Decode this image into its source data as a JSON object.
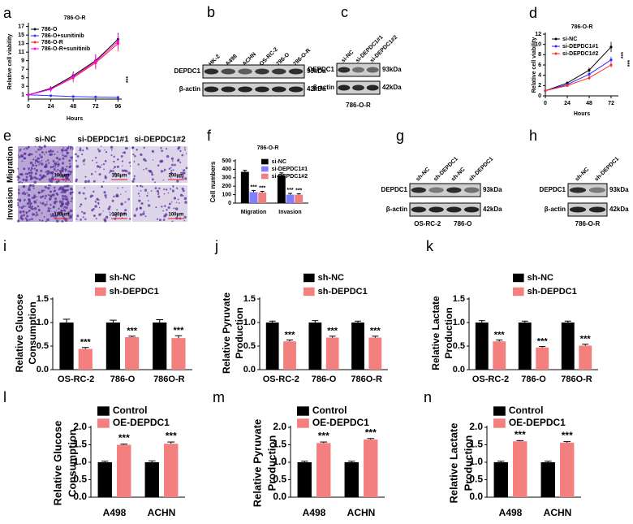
{
  "chart_data": [
    {
      "panel": "a",
      "type": "line",
      "title": "786-O-R",
      "xlabel": "Hours",
      "ylabel": "Relative cell viability",
      "x": [
        0,
        24,
        48,
        72,
        96
      ],
      "xlim": [
        0,
        100
      ],
      "xticks": [
        0,
        24,
        48,
        72,
        96
      ],
      "ylim": [
        0,
        17.5
      ],
      "yticks": [
        1,
        3,
        5,
        7,
        9,
        11,
        13,
        15,
        17
      ],
      "series": [
        {
          "name": "786-O",
          "color": "#000000",
          "values": [
            1,
            2.5,
            5.5,
            9,
            14
          ],
          "errors": [
            0,
            0.5,
            1,
            1.5,
            1.5
          ]
        },
        {
          "name": "786-O+sunitinib",
          "color": "#3333ff",
          "values": [
            1,
            0.8,
            0.6,
            0.5,
            0.4
          ],
          "errors": [
            0,
            0.1,
            0.1,
            0.1,
            0.1
          ]
        },
        {
          "name": "786-O-R",
          "color": "#ff2020",
          "values": [
            1,
            2.3,
            5,
            8.5,
            13
          ],
          "errors": [
            0,
            0.6,
            1.1,
            1.5,
            1.8
          ]
        },
        {
          "name": "786-O-R+sunitinib",
          "color": "#ff00ff",
          "values": [
            1,
            2.3,
            5.2,
            8.8,
            13.5
          ],
          "errors": [
            0,
            0.5,
            1,
            1.6,
            1.7
          ]
        }
      ],
      "annotations": [
        "***"
      ]
    },
    {
      "panel": "d",
      "type": "line",
      "title": "786-O-R",
      "xlabel": "Hours",
      "ylabel": "Relative cell viability",
      "x": [
        0,
        24,
        48,
        72
      ],
      "xlim": [
        0,
        80
      ],
      "xticks": [
        0,
        24,
        48,
        72
      ],
      "ylim": [
        0,
        12
      ],
      "yticks": [
        0,
        2,
        4,
        6,
        8,
        10,
        12
      ],
      "series": [
        {
          "name": "si-NC",
          "color": "#000000",
          "values": [
            1,
            2.5,
            5,
            9.5
          ],
          "errors": [
            0,
            0.3,
            0.5,
            1
          ]
        },
        {
          "name": "si-DEPDC1#1",
          "color": "#2b2bff",
          "values": [
            1,
            2.2,
            4.2,
            7
          ],
          "errors": [
            0,
            0.3,
            0.4,
            0.6
          ]
        },
        {
          "name": "si-DEPDC1#2",
          "color": "#ff2a2a",
          "values": [
            1,
            2,
            3.5,
            6
          ],
          "errors": [
            0,
            0.2,
            0.4,
            0.5
          ]
        }
      ],
      "annotations": [
        "***",
        "***"
      ]
    },
    {
      "panel": "f",
      "type": "bar",
      "title": "786-O-R",
      "ylabel": "Cell numbers",
      "categories": [
        "Migration",
        "Invasion"
      ],
      "ylim": [
        0,
        500
      ],
      "yticks": [
        0,
        100,
        200,
        300,
        400,
        500
      ],
      "series": [
        {
          "name": "si-NC",
          "color": "#000000",
          "values": [
            370,
            330
          ],
          "errors": [
            18,
            28
          ]
        },
        {
          "name": "si-DEPDC1#1",
          "color": "#8080ff",
          "values": [
            130,
            100
          ],
          "errors": [
            20,
            15
          ],
          "annotations": [
            "***",
            "***"
          ]
        },
        {
          "name": "si-DEPDC1#2",
          "color": "#f08080",
          "values": [
            125,
            100
          ],
          "errors": [
            15,
            10
          ],
          "annotations": [
            "***",
            "***"
          ]
        }
      ]
    },
    {
      "panel": "i",
      "type": "bar",
      "ylabel": [
        "Relative Glucose",
        "Consumption"
      ],
      "categories": [
        "OS-RC-2",
        "786-O",
        "786O-R"
      ],
      "ylim": [
        0,
        1.5
      ],
      "yticks": [
        {
          "value": 0,
          "label": "0.0"
        },
        0.5,
        {
          "value": 1,
          "label": "1.0"
        },
        1.5
      ],
      "series": [
        {
          "name": "sh-NC",
          "color": "#000000",
          "values": [
            1,
            1,
            1
          ],
          "errors": [
            0.07,
            0.05,
            0.06
          ]
        },
        {
          "name": "sh-DEPDC1",
          "color": "#f47f7f",
          "values": [
            0.44,
            0.69,
            0.67
          ],
          "errors": [
            0.03,
            0.02,
            0.05
          ],
          "annotations": [
            "***",
            "***",
            "***"
          ]
        }
      ]
    },
    {
      "panel": "j",
      "type": "bar",
      "ylabel": [
        "Relative Pyruvate",
        "Production"
      ],
      "categories": [
        "OS-RC-2",
        "786-O",
        "786O-R"
      ],
      "ylim": [
        0,
        1.5
      ],
      "yticks": [
        {
          "value": 0,
          "label": "0.0"
        },
        0.5,
        {
          "value": 1,
          "label": "1.0"
        },
        1.5
      ],
      "series": [
        {
          "name": "sh-NC",
          "color": "#000000",
          "values": [
            1,
            1,
            1
          ],
          "errors": [
            0.03,
            0.04,
            0.03
          ]
        },
        {
          "name": "sh-DEPDC1",
          "color": "#f47f7f",
          "values": [
            0.6,
            0.68,
            0.68
          ],
          "errors": [
            0.03,
            0.03,
            0.03
          ],
          "annotations": [
            "***",
            "***",
            "***"
          ]
        }
      ]
    },
    {
      "panel": "k",
      "type": "bar",
      "ylabel": [
        "Relative Lactate",
        "Production"
      ],
      "categories": [
        "OS-RC-2",
        "786-O",
        "786O-R"
      ],
      "ylim": [
        0,
        1.5
      ],
      "yticks": [
        {
          "value": 0,
          "label": "0.0"
        },
        0.5,
        {
          "value": 1,
          "label": "1.0"
        },
        1.5
      ],
      "series": [
        {
          "name": "sh-NC",
          "color": "#000000",
          "values": [
            1,
            1,
            1
          ],
          "errors": [
            0.04,
            0.03,
            0.03
          ]
        },
        {
          "name": "sh-DEPDC1",
          "color": "#f47f7f",
          "values": [
            0.6,
            0.47,
            0.51
          ],
          "errors": [
            0.03,
            0.02,
            0.03
          ],
          "annotations": [
            "***",
            "***",
            "***"
          ]
        }
      ]
    },
    {
      "panel": "l",
      "type": "bar",
      "ylabel": [
        "Relative Glucose",
        "Consumption"
      ],
      "categories": [
        "A498",
        "ACHN"
      ],
      "ylim": [
        0,
        2
      ],
      "yticks": [
        {
          "value": 0,
          "label": "0.0"
        },
        0.5,
        {
          "value": 1,
          "label": "1.0"
        },
        1.5,
        {
          "value": 2,
          "label": "2.0"
        }
      ],
      "series": [
        {
          "name": "Control",
          "color": "#000000",
          "values": [
            1,
            1
          ],
          "errors": [
            0.03,
            0.04
          ]
        },
        {
          "name": "OE-DEPDC1",
          "color": "#f47f7f",
          "values": [
            1.5,
            1.53
          ],
          "errors": [
            0.02,
            0.05
          ],
          "annotations": [
            "***",
            "***"
          ]
        }
      ]
    },
    {
      "panel": "m",
      "type": "bar",
      "ylabel": [
        "Relative Pyruvate",
        "Production"
      ],
      "categories": [
        "A498",
        "ACHN"
      ],
      "ylim": [
        0,
        2
      ],
      "yticks": [
        {
          "value": 0,
          "label": "0.0"
        },
        0.5,
        {
          "value": 1,
          "label": "1.0"
        },
        1.5,
        {
          "value": 2,
          "label": "2.0"
        }
      ],
      "series": [
        {
          "name": "Control",
          "color": "#000000",
          "values": [
            1,
            1
          ],
          "errors": [
            0.03,
            0.03
          ]
        },
        {
          "name": "OE-DEPDC1",
          "color": "#f47f7f",
          "values": [
            1.55,
            1.65
          ],
          "errors": [
            0.03,
            0.03
          ],
          "annotations": [
            "***",
            "***"
          ]
        }
      ]
    },
    {
      "panel": "n",
      "type": "bar",
      "ylabel": [
        "Relative Lactate",
        "Production"
      ],
      "categories": [
        "A498",
        "ACHN"
      ],
      "ylim": [
        0,
        2
      ],
      "yticks": [
        {
          "value": 0,
          "label": "0.0"
        },
        0.5,
        {
          "value": 1,
          "label": "1.0"
        },
        1.5,
        {
          "value": 2,
          "label": "2.0"
        }
      ],
      "series": [
        {
          "name": "Control",
          "color": "#000000",
          "values": [
            1,
            1
          ],
          "errors": [
            0.03,
            0.03
          ]
        },
        {
          "name": "OE-DEPDC1",
          "color": "#f47f7f",
          "values": [
            1.6,
            1.56
          ],
          "errors": [
            0.02,
            0.03
          ],
          "annotations": [
            "***",
            "***"
          ]
        }
      ]
    }
  ],
  "blots": [
    {
      "panel": "b",
      "lanes": [
        "HK-2",
        "A498",
        "ACHN",
        "OS-RC-2",
        "786-O",
        "786-O-R"
      ],
      "rows": [
        {
          "label": "DEPDC1",
          "size": "93kDa"
        },
        {
          "label": "β-actin",
          "size": "42kDa"
        }
      ],
      "groups": []
    },
    {
      "panel": "c",
      "lanes": [
        "si-NC",
        "si-DEPDC1#1",
        "si-DEPDC1#2"
      ],
      "rows": [
        {
          "label": "DEPDC1",
          "size": "93kDa"
        },
        {
          "label": "β-actin",
          "size": "42kDa"
        }
      ],
      "groups": [
        "786-O-R"
      ]
    },
    {
      "panel": "g",
      "lanes": [
        "sh-NC",
        "sh-DEPDC1",
        "sh-NC",
        "sh-DEPDC1"
      ],
      "rows": [
        {
          "label": "DEPDC1",
          "size": "93kDa"
        },
        {
          "label": "β-actin",
          "size": "42kDa"
        }
      ],
      "groups": [
        "OS-RC-2",
        "786-O"
      ]
    },
    {
      "panel": "h",
      "lanes": [
        "sh-NC",
        "sh-DEPDC1"
      ],
      "rows": [
        {
          "label": "DEPDC1",
          "size": "93kDa"
        },
        {
          "label": "β-actin",
          "size": "42kDa"
        }
      ],
      "groups": [
        "786-O-R"
      ]
    }
  ],
  "micrograph": {
    "panel": "e",
    "columns": [
      "si-NC",
      "si-DEPDC1#1",
      "si-DEPDC1#2"
    ],
    "rows": [
      "Migration",
      "Invasion"
    ],
    "scale_bar": "100μm"
  }
}
